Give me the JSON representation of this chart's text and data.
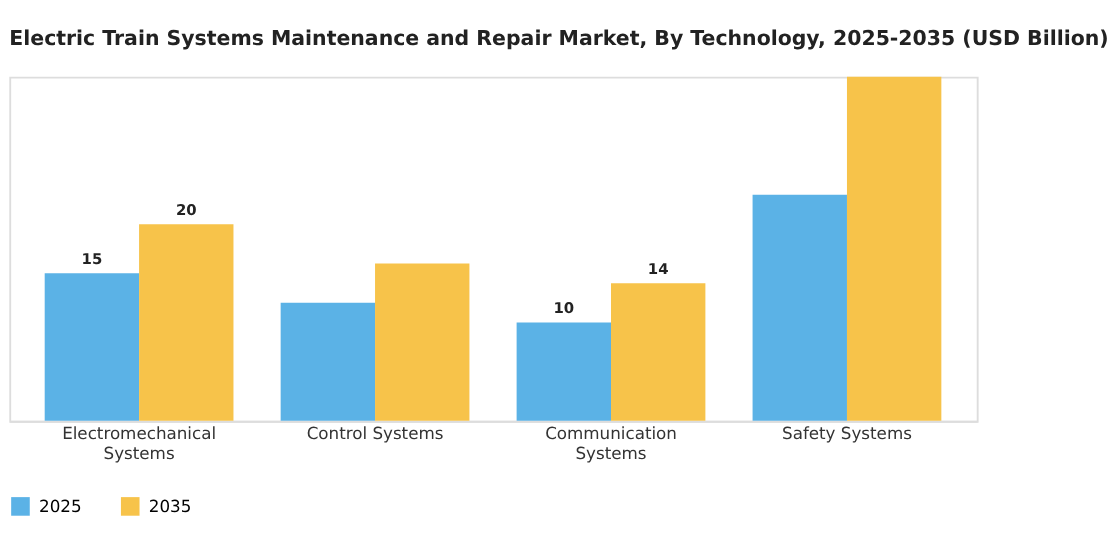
{
  "chart_data": {
    "type": "bar",
    "title": "Electric Train Systems Maintenance and Repair Market, By Technology, 2025-2035 (USD Billion)",
    "categories": [
      "Electromechanical Systems",
      "Control Systems",
      "Communication Systems",
      "Safety Systems"
    ],
    "series": [
      {
        "name": "2025",
        "color": "#5bb2e6",
        "values": [
          15,
          12,
          10,
          23
        ],
        "value_labels": [
          "15",
          null,
          "10",
          null
        ]
      },
      {
        "name": "2035",
        "color": "#f7c34a",
        "values": [
          20,
          16,
          14,
          35
        ],
        "value_labels": [
          "20",
          null,
          "14",
          null
        ]
      }
    ],
    "legend": "bottom",
    "grid": false,
    "tick_labels": "x"
  }
}
